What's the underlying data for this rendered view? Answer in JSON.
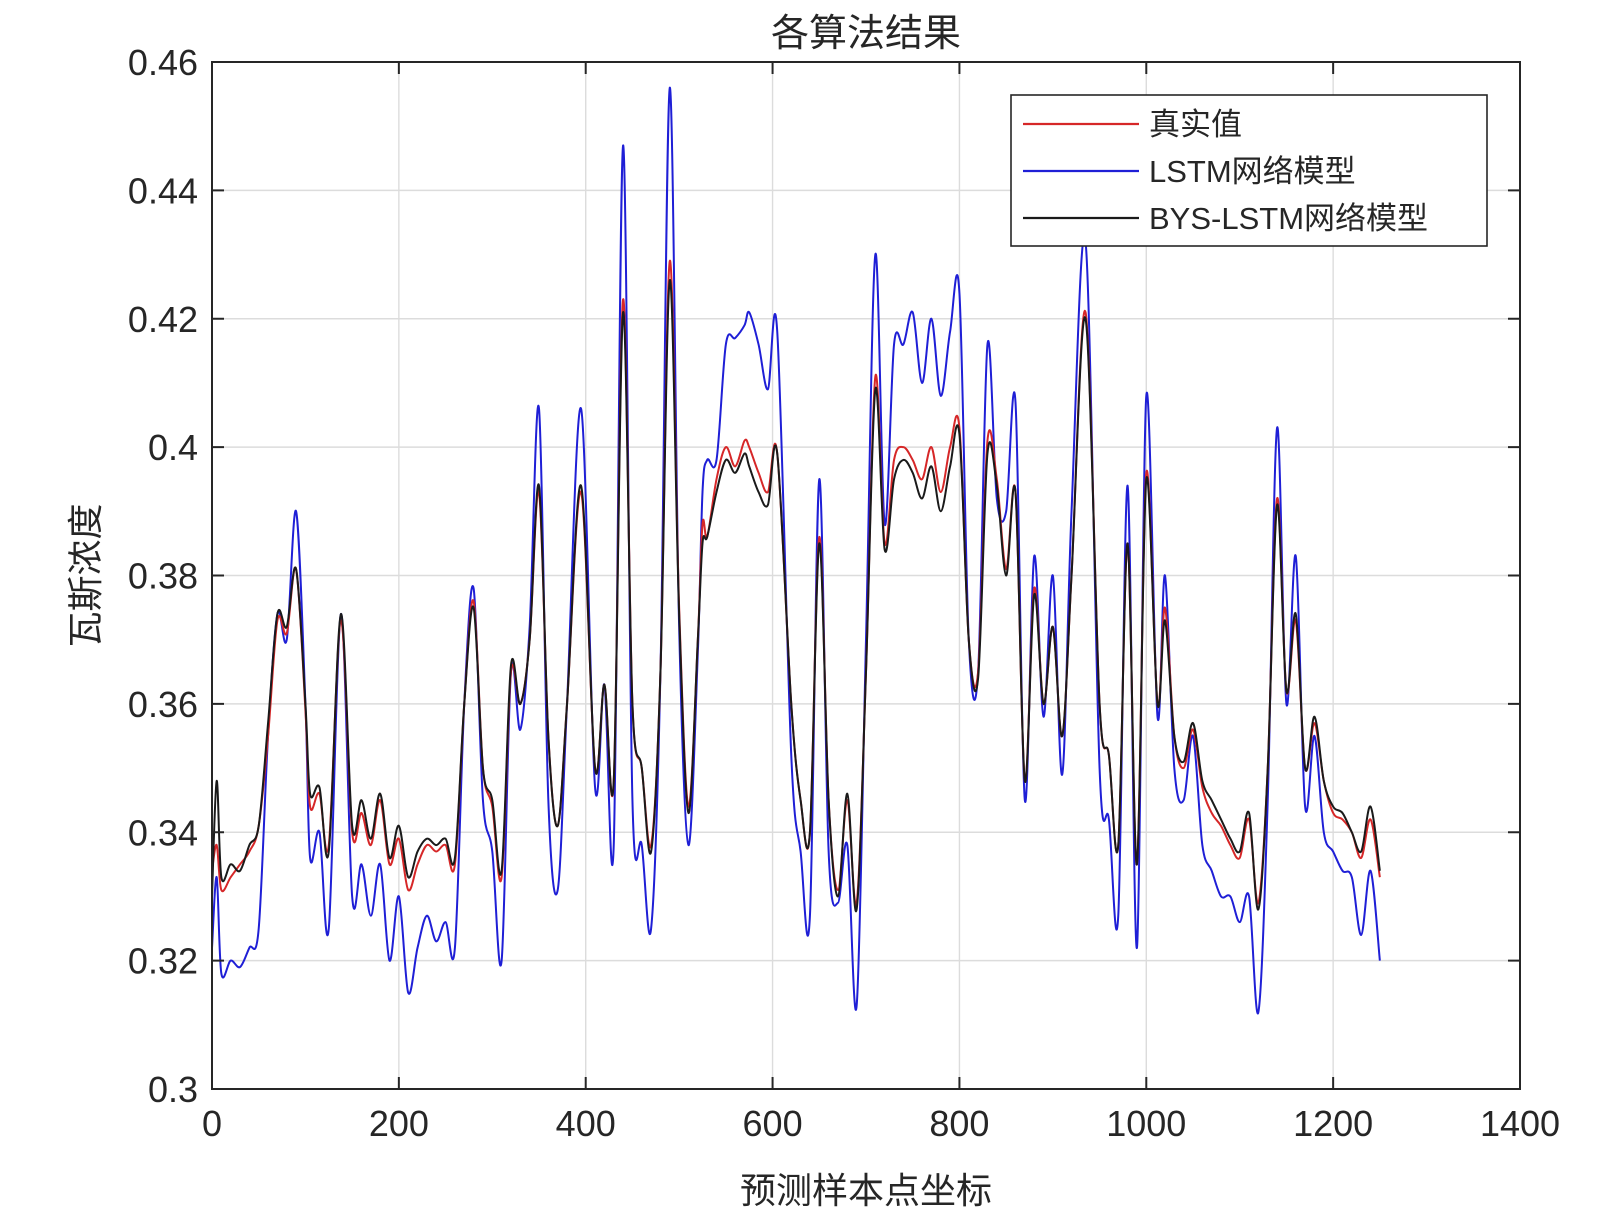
{
  "chart_data": {
    "type": "line",
    "title": "各算法结果",
    "xlabel": "预测样本点坐标",
    "ylabel": "瓦斯浓度",
    "xlim": [
      0,
      1400
    ],
    "ylim": [
      0.3,
      0.46
    ],
    "xticks": [
      0,
      200,
      400,
      600,
      800,
      1000,
      1200,
      1400
    ],
    "xtick_labels": [
      "0",
      "200",
      "400",
      "600",
      "800",
      "1000",
      "1200",
      "1400"
    ],
    "yticks": [
      0.3,
      0.32,
      0.34,
      0.36,
      0.38,
      0.4,
      0.42,
      0.44,
      0.46
    ],
    "ytick_labels": [
      "0.3",
      "0.32",
      "0.34",
      "0.36",
      "0.38",
      "0.4",
      "0.42",
      "0.44",
      "0.46"
    ],
    "grid": true,
    "legend_position": "top-right",
    "series": [
      {
        "name": "真实值",
        "color": "#d62728",
        "x": [
          0,
          5,
          10,
          20,
          30,
          40,
          50,
          60,
          70,
          80,
          90,
          100,
          105,
          115,
          125,
          138,
          150,
          160,
          170,
          180,
          190,
          200,
          210,
          220,
          230,
          240,
          250,
          260,
          270,
          280,
          290,
          300,
          310,
          320,
          330,
          340,
          350,
          360,
          370,
          380,
          395,
          410,
          420,
          430,
          440,
          450,
          460,
          470,
          480,
          490,
          500,
          510,
          520,
          525,
          530,
          540,
          550,
          560,
          570,
          575,
          585,
          595,
          605,
          620,
          630,
          640,
          650,
          660,
          670,
          680,
          690,
          700,
          710,
          720,
          730,
          740,
          750,
          760,
          770,
          780,
          790,
          800,
          810,
          820,
          830,
          840,
          850,
          860,
          870,
          880,
          890,
          900,
          910,
          920,
          935,
          950,
          960,
          970,
          980,
          990,
          1000,
          1012,
          1020,
          1030,
          1040,
          1050,
          1060,
          1070,
          1080,
          1090,
          1100,
          1110,
          1120,
          1130,
          1140,
          1150,
          1160,
          1170,
          1180,
          1190,
          1200,
          1210,
          1220,
          1230,
          1240,
          1250
        ],
        "values": [
          0.334,
          0.338,
          0.331,
          0.333,
          0.335,
          0.337,
          0.341,
          0.355,
          0.373,
          0.371,
          0.381,
          0.359,
          0.344,
          0.346,
          0.338,
          0.373,
          0.34,
          0.343,
          0.338,
          0.345,
          0.335,
          0.339,
          0.331,
          0.335,
          0.338,
          0.337,
          0.338,
          0.335,
          0.36,
          0.376,
          0.35,
          0.344,
          0.333,
          0.365,
          0.36,
          0.37,
          0.393,
          0.355,
          0.341,
          0.36,
          0.393,
          0.35,
          0.363,
          0.348,
          0.423,
          0.36,
          0.35,
          0.338,
          0.365,
          0.429,
          0.375,
          0.344,
          0.37,
          0.388,
          0.386,
          0.395,
          0.4,
          0.397,
          0.401,
          0.4,
          0.396,
          0.393,
          0.399,
          0.36,
          0.345,
          0.34,
          0.386,
          0.345,
          0.331,
          0.345,
          0.329,
          0.365,
          0.411,
          0.385,
          0.398,
          0.4,
          0.398,
          0.395,
          0.4,
          0.393,
          0.4,
          0.403,
          0.37,
          0.365,
          0.401,
          0.395,
          0.381,
          0.393,
          0.348,
          0.378,
          0.36,
          0.372,
          0.355,
          0.38,
          0.421,
          0.36,
          0.352,
          0.338,
          0.385,
          0.335,
          0.396,
          0.36,
          0.375,
          0.355,
          0.35,
          0.356,
          0.347,
          0.343,
          0.341,
          0.338,
          0.336,
          0.342,
          0.329,
          0.35,
          0.392,
          0.362,
          0.373,
          0.35,
          0.357,
          0.348,
          0.343,
          0.342,
          0.34,
          0.336,
          0.342,
          0.333
        ]
      },
      {
        "name": "LSTM网络模型",
        "color": "#1f1fd6",
        "x": [
          0,
          5,
          10,
          20,
          30,
          40,
          50,
          60,
          70,
          80,
          90,
          100,
          105,
          115,
          125,
          138,
          150,
          160,
          170,
          180,
          190,
          200,
          210,
          220,
          230,
          240,
          250,
          260,
          270,
          280,
          290,
          300,
          310,
          320,
          330,
          340,
          350,
          360,
          370,
          380,
          395,
          410,
          420,
          430,
          440,
          450,
          460,
          470,
          480,
          490,
          500,
          510,
          520,
          525,
          530,
          540,
          550,
          560,
          570,
          575,
          585,
          595,
          605,
          620,
          630,
          640,
          650,
          660,
          670,
          680,
          690,
          700,
          710,
          720,
          730,
          740,
          750,
          760,
          770,
          780,
          790,
          800,
          810,
          820,
          830,
          840,
          850,
          860,
          870,
          880,
          890,
          900,
          910,
          920,
          935,
          950,
          960,
          970,
          980,
          990,
          1000,
          1012,
          1020,
          1030,
          1040,
          1050,
          1060,
          1070,
          1080,
          1090,
          1100,
          1110,
          1120,
          1130,
          1140,
          1150,
          1160,
          1170,
          1180,
          1190,
          1200,
          1210,
          1220,
          1230,
          1240,
          1250
        ],
        "values": [
          0.322,
          0.333,
          0.318,
          0.32,
          0.319,
          0.322,
          0.325,
          0.355,
          0.374,
          0.37,
          0.39,
          0.36,
          0.336,
          0.34,
          0.325,
          0.374,
          0.33,
          0.335,
          0.327,
          0.335,
          0.32,
          0.33,
          0.315,
          0.322,
          0.327,
          0.323,
          0.326,
          0.322,
          0.36,
          0.378,
          0.345,
          0.337,
          0.32,
          0.365,
          0.356,
          0.372,
          0.406,
          0.345,
          0.331,
          0.36,
          0.406,
          0.347,
          0.363,
          0.338,
          0.447,
          0.345,
          0.338,
          0.325,
          0.365,
          0.456,
          0.372,
          0.338,
          0.368,
          0.393,
          0.398,
          0.398,
          0.416,
          0.417,
          0.419,
          0.421,
          0.416,
          0.409,
          0.418,
          0.352,
          0.337,
          0.327,
          0.395,
          0.337,
          0.329,
          0.338,
          0.313,
          0.37,
          0.43,
          0.388,
          0.416,
          0.416,
          0.421,
          0.41,
          0.42,
          0.408,
          0.418,
          0.424,
          0.37,
          0.365,
          0.416,
          0.392,
          0.39,
          0.407,
          0.345,
          0.383,
          0.358,
          0.38,
          0.349,
          0.39,
          0.432,
          0.35,
          0.342,
          0.327,
          0.394,
          0.322,
          0.408,
          0.358,
          0.38,
          0.35,
          0.345,
          0.355,
          0.338,
          0.334,
          0.33,
          0.33,
          0.326,
          0.33,
          0.312,
          0.345,
          0.403,
          0.36,
          0.383,
          0.344,
          0.355,
          0.34,
          0.337,
          0.334,
          0.333,
          0.324,
          0.334,
          0.32
        ]
      },
      {
        "name": "BYS-LSTM网络模型",
        "color": "#1a1a1a",
        "x": [
          0,
          5,
          10,
          20,
          30,
          40,
          50,
          60,
          70,
          80,
          90,
          100,
          105,
          115,
          125,
          138,
          150,
          160,
          170,
          180,
          190,
          200,
          210,
          220,
          230,
          240,
          250,
          260,
          270,
          280,
          290,
          300,
          310,
          320,
          330,
          340,
          350,
          360,
          370,
          380,
          395,
          410,
          420,
          430,
          440,
          450,
          460,
          470,
          480,
          490,
          500,
          510,
          520,
          525,
          530,
          540,
          550,
          560,
          570,
          575,
          585,
          595,
          605,
          620,
          630,
          640,
          650,
          660,
          670,
          680,
          690,
          700,
          710,
          720,
          730,
          740,
          750,
          760,
          770,
          780,
          790,
          800,
          810,
          820,
          830,
          840,
          850,
          860,
          870,
          880,
          890,
          900,
          910,
          920,
          935,
          950,
          960,
          970,
          980,
          990,
          1000,
          1012,
          1020,
          1030,
          1040,
          1050,
          1060,
          1070,
          1080,
          1090,
          1100,
          1110,
          1120,
          1130,
          1140,
          1150,
          1160,
          1170,
          1180,
          1190,
          1200,
          1210,
          1220,
          1230,
          1240,
          1250
        ],
        "values": [
          0.33,
          0.348,
          0.333,
          0.335,
          0.334,
          0.338,
          0.341,
          0.357,
          0.374,
          0.372,
          0.381,
          0.36,
          0.346,
          0.347,
          0.337,
          0.374,
          0.341,
          0.345,
          0.339,
          0.346,
          0.336,
          0.341,
          0.333,
          0.337,
          0.339,
          0.338,
          0.339,
          0.336,
          0.36,
          0.375,
          0.35,
          0.345,
          0.334,
          0.366,
          0.36,
          0.37,
          0.394,
          0.355,
          0.341,
          0.36,
          0.394,
          0.35,
          0.363,
          0.348,
          0.421,
          0.36,
          0.35,
          0.337,
          0.365,
          0.426,
          0.374,
          0.343,
          0.37,
          0.385,
          0.386,
          0.393,
          0.398,
          0.396,
          0.399,
          0.397,
          0.393,
          0.391,
          0.399,
          0.36,
          0.345,
          0.34,
          0.385,
          0.345,
          0.33,
          0.346,
          0.328,
          0.365,
          0.409,
          0.384,
          0.395,
          0.398,
          0.396,
          0.392,
          0.397,
          0.39,
          0.397,
          0.402,
          0.37,
          0.364,
          0.399,
          0.394,
          0.38,
          0.393,
          0.348,
          0.377,
          0.36,
          0.372,
          0.355,
          0.38,
          0.42,
          0.36,
          0.352,
          0.338,
          0.385,
          0.335,
          0.395,
          0.36,
          0.373,
          0.355,
          0.351,
          0.357,
          0.348,
          0.345,
          0.342,
          0.339,
          0.337,
          0.343,
          0.328,
          0.35,
          0.391,
          0.362,
          0.374,
          0.35,
          0.358,
          0.348,
          0.344,
          0.343,
          0.34,
          0.337,
          0.344,
          0.334
        ]
      }
    ]
  }
}
